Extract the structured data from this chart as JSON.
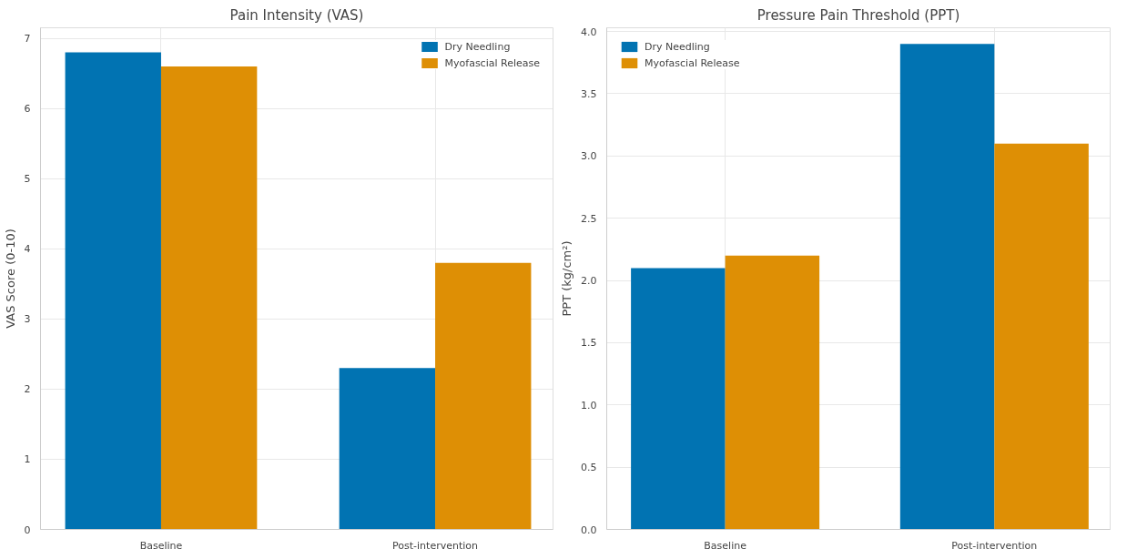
{
  "chart_data": [
    {
      "type": "bar",
      "title": "Pain Intensity (VAS)",
      "ylabel": "VAS Score (0-10)",
      "categories": [
        "Baseline",
        "Post-intervention"
      ],
      "series": [
        {
          "name": "Dry Needling",
          "color": "#0173b2",
          "values": [
            6.8,
            2.3
          ]
        },
        {
          "name": "Myofascial Release",
          "color": "#de8f05",
          "values": [
            6.6,
            3.8
          ]
        }
      ],
      "ylim": [
        0,
        7.15
      ],
      "yticks": [
        0,
        1,
        2,
        3,
        4,
        5,
        6,
        7
      ],
      "grid": true,
      "legend": "top right"
    },
    {
      "type": "bar",
      "title": "Pressure Pain Threshold (PPT)",
      "ylabel": "PPT (kg/cm²)",
      "categories": [
        "Baseline",
        "Post-intervention"
      ],
      "series": [
        {
          "name": "Dry Needling",
          "color": "#0173b2",
          "values": [
            2.1,
            3.9
          ]
        },
        {
          "name": "Myofascial Release",
          "color": "#de8f05",
          "values": [
            2.2,
            3.1
          ]
        }
      ],
      "ylim": [
        0,
        4.03
      ],
      "yticks": [
        {
          "value": 0,
          "label": "0.0"
        },
        {
          "value": 0.5,
          "label": "0.5"
        },
        {
          "value": 1,
          "label": "1.0"
        },
        {
          "value": 1.5,
          "label": "1.5"
        },
        {
          "value": 2,
          "label": "2.0"
        },
        {
          "value": 2.5,
          "label": "2.5"
        },
        {
          "value": 3,
          "label": "3.0"
        },
        {
          "value": 3.5,
          "label": "3.5"
        },
        {
          "value": 4,
          "label": "4.0"
        }
      ],
      "grid": true,
      "legend": "top left"
    }
  ]
}
